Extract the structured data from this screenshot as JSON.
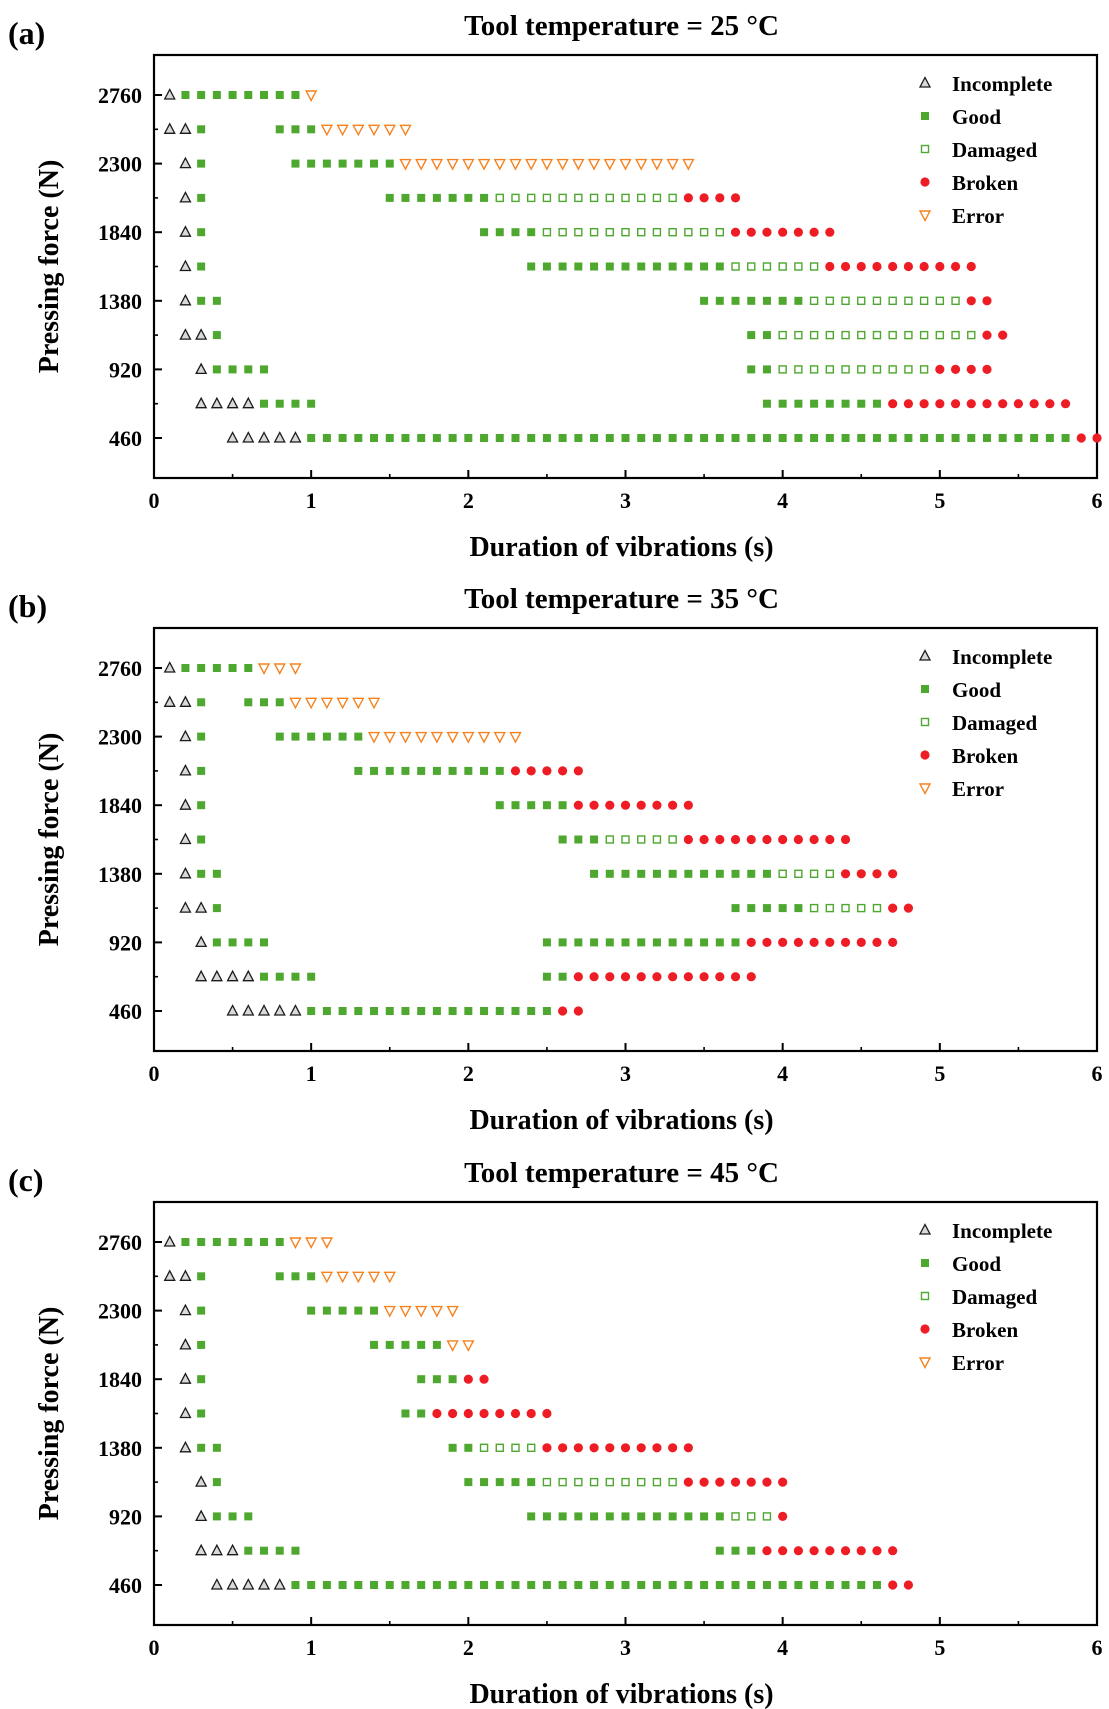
{
  "chart_data": [
    {
      "panel": "(a)",
      "type": "scatter",
      "title": "Tool temperature = 25 °C",
      "xlabel": "Duration of vibrations (s)",
      "ylabel": "Pressing force (N)",
      "xlim": [
        0,
        6
      ],
      "x_ticks": [
        "0",
        "1",
        "2",
        "3",
        "4",
        "5",
        "6"
      ],
      "y_ticks": [
        "460",
        "920",
        "1380",
        "1840",
        "2300",
        "2760"
      ],
      "legend": [
        "Incomplete",
        "Good",
        "Damaged",
        "Broken",
        "Error"
      ],
      "legend_position": "top-right",
      "grid": false,
      "rows": [
        {
          "force": 2760,
          "segments": [
            [
              "incomplete",
              0.1,
              0.1
            ],
            [
              "good",
              0.2,
              0.9
            ],
            [
              "error",
              1.0,
              1.0
            ]
          ]
        },
        {
          "force": 2530,
          "segments": [
            [
              "incomplete",
              0.1,
              0.2
            ],
            [
              "good",
              0.3,
              0.3
            ],
            [
              "good",
              0.8,
              1.0
            ],
            [
              "error",
              1.1,
              1.6
            ]
          ]
        },
        {
          "force": 2300,
          "segments": [
            [
              "incomplete",
              0.2,
              0.2
            ],
            [
              "good",
              0.3,
              0.3
            ],
            [
              "good",
              0.9,
              1.5
            ],
            [
              "error",
              1.6,
              3.4
            ]
          ]
        },
        {
          "force": 2070,
          "segments": [
            [
              "incomplete",
              0.2,
              0.2
            ],
            [
              "good",
              0.3,
              0.3
            ],
            [
              "good",
              1.5,
              2.1
            ],
            [
              "damaged",
              2.2,
              3.3
            ],
            [
              "broken",
              3.4,
              3.7
            ]
          ]
        },
        {
          "force": 1840,
          "segments": [
            [
              "incomplete",
              0.2,
              0.2
            ],
            [
              "good",
              0.3,
              0.3
            ],
            [
              "good",
              2.1,
              2.4
            ],
            [
              "damaged",
              2.5,
              3.6
            ],
            [
              "broken",
              3.7,
              4.3
            ]
          ]
        },
        {
          "force": 1610,
          "segments": [
            [
              "incomplete",
              0.2,
              0.2
            ],
            [
              "good",
              0.3,
              0.3
            ],
            [
              "good",
              2.4,
              3.6
            ],
            [
              "damaged",
              3.7,
              4.2
            ],
            [
              "broken",
              4.3,
              5.2
            ]
          ]
        },
        {
          "force": 1380,
          "segments": [
            [
              "incomplete",
              0.2,
              0.2
            ],
            [
              "good",
              0.3,
              0.4
            ],
            [
              "good",
              3.5,
              4.1
            ],
            [
              "damaged",
              4.2,
              5.1
            ],
            [
              "broken",
              5.2,
              5.3
            ]
          ]
        },
        {
          "force": 1150,
          "segments": [
            [
              "incomplete",
              0.2,
              0.3
            ],
            [
              "good",
              0.4,
              0.4
            ],
            [
              "good",
              3.8,
              3.9
            ],
            [
              "damaged",
              4.0,
              5.2
            ],
            [
              "broken",
              5.3,
              5.4
            ]
          ]
        },
        {
          "force": 920,
          "segments": [
            [
              "incomplete",
              0.3,
              0.3
            ],
            [
              "good",
              0.4,
              0.7
            ],
            [
              "good",
              3.8,
              3.9
            ],
            [
              "damaged",
              4.0,
              4.9
            ],
            [
              "broken",
              5.0,
              5.3
            ]
          ]
        },
        {
          "force": 690,
          "segments": [
            [
              "incomplete",
              0.3,
              0.6
            ],
            [
              "good",
              0.7,
              1.0
            ],
            [
              "good",
              3.9,
              4.6
            ],
            [
              "broken",
              4.7,
              5.8
            ]
          ]
        },
        {
          "force": 460,
          "segments": [
            [
              "incomplete",
              0.5,
              0.9
            ],
            [
              "good",
              1.0,
              5.8
            ],
            [
              "broken",
              5.9,
              6.0
            ]
          ]
        }
      ]
    },
    {
      "panel": "(b)",
      "type": "scatter",
      "title": "Tool temperature = 35 °C",
      "xlabel": "Duration of vibrations (s)",
      "ylabel": "Pressing force (N)",
      "xlim": [
        0,
        6
      ],
      "x_ticks": [
        "0",
        "1",
        "2",
        "3",
        "4",
        "5",
        "6"
      ],
      "y_ticks": [
        "460",
        "920",
        "1380",
        "1840",
        "2300",
        "2760"
      ],
      "legend": [
        "Incomplete",
        "Good",
        "Damaged",
        "Broken",
        "Error"
      ],
      "legend_position": "top-right",
      "grid": false,
      "rows": [
        {
          "force": 2760,
          "segments": [
            [
              "incomplete",
              0.1,
              0.1
            ],
            [
              "good",
              0.2,
              0.6
            ],
            [
              "error",
              0.7,
              0.9
            ]
          ]
        },
        {
          "force": 2530,
          "segments": [
            [
              "incomplete",
              0.1,
              0.2
            ],
            [
              "good",
              0.3,
              0.3
            ],
            [
              "good",
              0.6,
              0.8
            ],
            [
              "error",
              0.9,
              1.4
            ]
          ]
        },
        {
          "force": 2300,
          "segments": [
            [
              "incomplete",
              0.2,
              0.2
            ],
            [
              "good",
              0.3,
              0.3
            ],
            [
              "good",
              0.8,
              1.3
            ],
            [
              "error",
              1.4,
              2.3
            ]
          ]
        },
        {
          "force": 2070,
          "segments": [
            [
              "incomplete",
              0.2,
              0.2
            ],
            [
              "good",
              0.3,
              0.3
            ],
            [
              "good",
              1.3,
              2.2
            ],
            [
              "broken",
              2.3,
              2.7
            ]
          ]
        },
        {
          "force": 1840,
          "segments": [
            [
              "incomplete",
              0.2,
              0.2
            ],
            [
              "good",
              0.3,
              0.3
            ],
            [
              "good",
              2.2,
              2.6
            ],
            [
              "broken",
              2.7,
              3.4
            ]
          ]
        },
        {
          "force": 1610,
          "segments": [
            [
              "incomplete",
              0.2,
              0.2
            ],
            [
              "good",
              0.3,
              0.3
            ],
            [
              "good",
              2.6,
              2.8
            ],
            [
              "damaged",
              2.9,
              3.3
            ],
            [
              "broken",
              3.4,
              4.4
            ]
          ]
        },
        {
          "force": 1380,
          "segments": [
            [
              "incomplete",
              0.2,
              0.2
            ],
            [
              "good",
              0.3,
              0.4
            ],
            [
              "good",
              2.8,
              3.9
            ],
            [
              "damaged",
              4.0,
              4.3
            ],
            [
              "broken",
              4.4,
              4.7
            ]
          ]
        },
        {
          "force": 1150,
          "segments": [
            [
              "incomplete",
              0.2,
              0.3
            ],
            [
              "good",
              0.4,
              0.4
            ],
            [
              "good",
              3.7,
              4.1
            ],
            [
              "damaged",
              4.2,
              4.6
            ],
            [
              "broken",
              4.7,
              4.8
            ]
          ]
        },
        {
          "force": 920,
          "segments": [
            [
              "incomplete",
              0.3,
              0.3
            ],
            [
              "good",
              0.4,
              0.7
            ],
            [
              "good",
              2.5,
              3.7
            ],
            [
              "broken",
              3.8,
              4.7
            ]
          ]
        },
        {
          "force": 690,
          "segments": [
            [
              "incomplete",
              0.3,
              0.6
            ],
            [
              "good",
              0.7,
              1.0
            ],
            [
              "good",
              2.5,
              2.6
            ],
            [
              "broken",
              2.7,
              3.8
            ]
          ]
        },
        {
          "force": 460,
          "segments": [
            [
              "incomplete",
              0.5,
              0.9
            ],
            [
              "good",
              1.0,
              2.5
            ],
            [
              "broken",
              2.6,
              2.7
            ]
          ]
        }
      ]
    },
    {
      "panel": "(c)",
      "type": "scatter",
      "title": "Tool temperature = 45 °C",
      "xlabel": "Duration of vibrations (s)",
      "ylabel": "Pressing force (N)",
      "xlim": [
        0,
        6
      ],
      "x_ticks": [
        "0",
        "1",
        "2",
        "3",
        "4",
        "5",
        "6"
      ],
      "y_ticks": [
        "460",
        "920",
        "1380",
        "1840",
        "2300",
        "2760"
      ],
      "legend": [
        "Incomplete",
        "Good",
        "Damaged",
        "Broken",
        "Error"
      ],
      "legend_position": "top-right",
      "grid": false,
      "rows": [
        {
          "force": 2760,
          "segments": [
            [
              "incomplete",
              0.1,
              0.1
            ],
            [
              "good",
              0.2,
              0.8
            ],
            [
              "error",
              0.9,
              1.1
            ]
          ]
        },
        {
          "force": 2530,
          "segments": [
            [
              "incomplete",
              0.1,
              0.2
            ],
            [
              "good",
              0.3,
              0.3
            ],
            [
              "good",
              0.8,
              1.0
            ],
            [
              "error",
              1.1,
              1.5
            ]
          ]
        },
        {
          "force": 2300,
          "segments": [
            [
              "incomplete",
              0.2,
              0.2
            ],
            [
              "good",
              0.3,
              0.3
            ],
            [
              "good",
              1.0,
              1.4
            ],
            [
              "error",
              1.5,
              1.9
            ]
          ]
        },
        {
          "force": 2070,
          "segments": [
            [
              "incomplete",
              0.2,
              0.2
            ],
            [
              "good",
              0.3,
              0.3
            ],
            [
              "good",
              1.4,
              1.8
            ],
            [
              "error",
              1.9,
              2.0
            ]
          ]
        },
        {
          "force": 1840,
          "segments": [
            [
              "incomplete",
              0.2,
              0.2
            ],
            [
              "good",
              0.3,
              0.3
            ],
            [
              "good",
              1.7,
              1.9
            ],
            [
              "broken",
              2.0,
              2.1
            ]
          ]
        },
        {
          "force": 1610,
          "segments": [
            [
              "incomplete",
              0.2,
              0.2
            ],
            [
              "good",
              0.3,
              0.3
            ],
            [
              "good",
              1.6,
              1.7
            ],
            [
              "broken",
              1.8,
              2.5
            ]
          ]
        },
        {
          "force": 1380,
          "segments": [
            [
              "incomplete",
              0.2,
              0.2
            ],
            [
              "good",
              0.3,
              0.4
            ],
            [
              "good",
              1.9,
              2.0
            ],
            [
              "damaged",
              2.1,
              2.4
            ],
            [
              "broken",
              2.5,
              3.4
            ]
          ]
        },
        {
          "force": 1150,
          "segments": [
            [
              "incomplete",
              0.3,
              0.3
            ],
            [
              "good",
              0.4,
              0.4
            ],
            [
              "good",
              2.0,
              2.4
            ],
            [
              "damaged",
              2.5,
              3.3
            ],
            [
              "broken",
              3.4,
              4.0
            ]
          ]
        },
        {
          "force": 920,
          "segments": [
            [
              "incomplete",
              0.3,
              0.3
            ],
            [
              "good",
              0.4,
              0.6
            ],
            [
              "good",
              2.4,
              3.6
            ],
            [
              "damaged",
              3.7,
              3.9
            ],
            [
              "broken",
              4.0,
              4.0
            ]
          ]
        },
        {
          "force": 690,
          "segments": [
            [
              "incomplete",
              0.3,
              0.5
            ],
            [
              "good",
              0.6,
              0.9
            ],
            [
              "good",
              3.6,
              3.8
            ],
            [
              "broken",
              3.9,
              4.7
            ]
          ]
        },
        {
          "force": 460,
          "segments": [
            [
              "incomplete",
              0.4,
              0.8
            ],
            [
              "good",
              0.9,
              4.6
            ],
            [
              "broken",
              4.7,
              4.8
            ]
          ]
        }
      ]
    }
  ],
  "series_styles": {
    "incomplete": {
      "legend_index": 0,
      "marker": "triangle-up-hollow",
      "color": "#1a1a1a",
      "fill": "#d9d9d9"
    },
    "good": {
      "legend_index": 1,
      "marker": "square-filled",
      "color": "#4ea72e"
    },
    "damaged": {
      "legend_index": 2,
      "marker": "square-hollow",
      "color": "#4ea72e"
    },
    "broken": {
      "legend_index": 3,
      "marker": "circle-filled",
      "color": "#ee1c25"
    },
    "error": {
      "legend_index": 4,
      "marker": "triangle-down-hollow",
      "color": "#f5821f"
    }
  },
  "colors": {
    "good": "#4ea72e",
    "broken": "#ee1c25",
    "error": "#f5821f",
    "incomplete": "#1a1a1a",
    "axes": "#000000",
    "background": "#ffffff"
  }
}
